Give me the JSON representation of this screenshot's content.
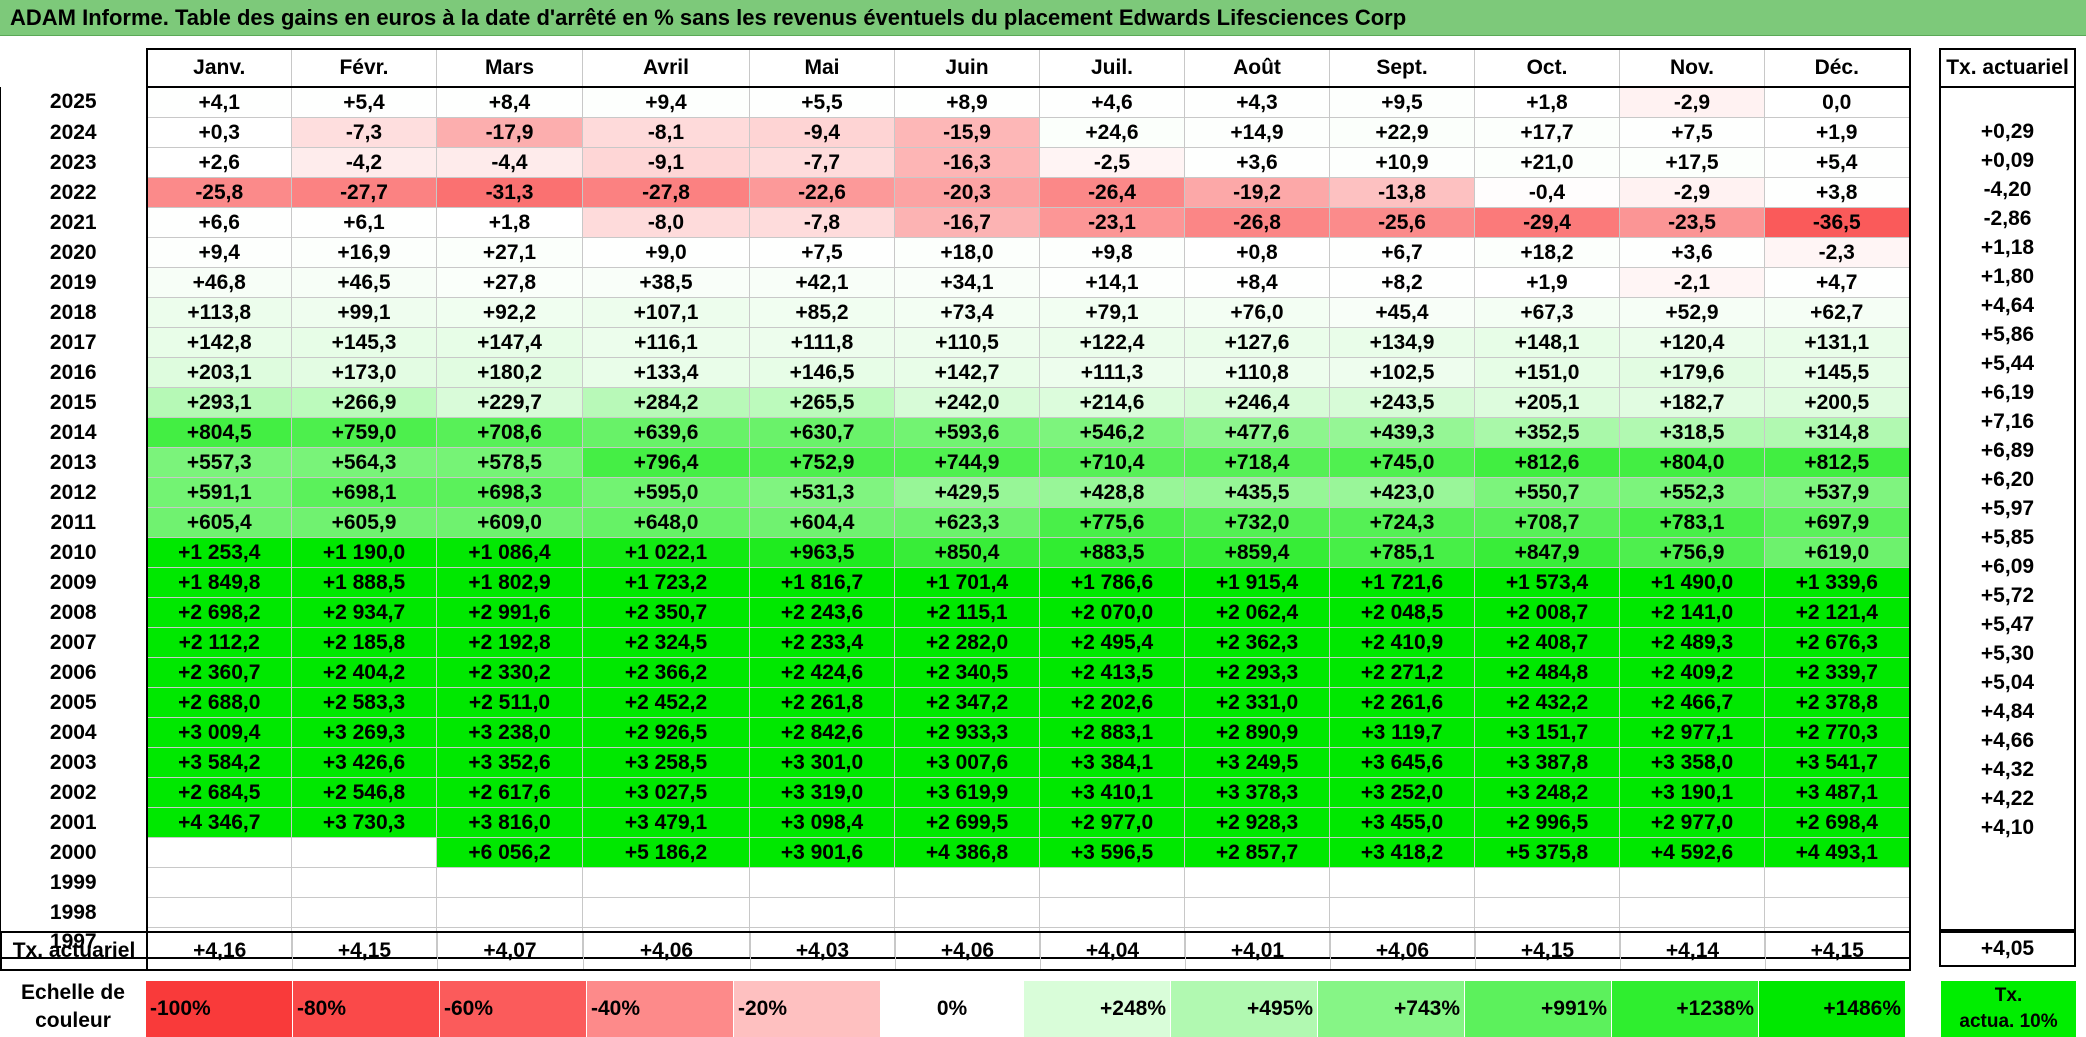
{
  "title": "ADAM Informe. Table des gains en euros à la date d'arrêté en % sans les revenus éventuels du placement Edwards Lifesciences Corp",
  "months": [
    "Janv.",
    "Févr.",
    "Mars",
    "Avril",
    "Mai",
    "Juin",
    "Juil.",
    "Août",
    "Sept.",
    "Oct.",
    "Nov.",
    "Déc."
  ],
  "side_header": "Tx. actuariel",
  "rows": [
    {
      "year": "2025",
      "values": [
        "+4,1",
        "+5,4",
        "+8,4",
        "+9,4",
        "+5,5",
        "+8,9",
        "+4,6",
        "+4,3",
        "+9,5",
        "+1,8",
        "-2,9",
        "0,0"
      ],
      "tx": ""
    },
    {
      "year": "2024",
      "values": [
        "+0,3",
        "-7,3",
        "-17,9",
        "-8,1",
        "-9,4",
        "-15,9",
        "+24,6",
        "+14,9",
        "+22,9",
        "+17,7",
        "+7,5",
        "+1,9"
      ],
      "tx": "+0,29"
    },
    {
      "year": "2023",
      "values": [
        "+2,6",
        "-4,2",
        "-4,4",
        "-9,1",
        "-7,7",
        "-16,3",
        "-2,5",
        "+3,6",
        "+10,9",
        "+21,0",
        "+17,5",
        "+5,4"
      ],
      "tx": "+0,09"
    },
    {
      "year": "2022",
      "values": [
        "-25,8",
        "-27,7",
        "-31,3",
        "-27,8",
        "-22,6",
        "-20,3",
        "-26,4",
        "-19,2",
        "-13,8",
        "-0,4",
        "-2,9",
        "+3,8"
      ],
      "tx": "-4,20"
    },
    {
      "year": "2021",
      "values": [
        "+6,6",
        "+6,1",
        "+1,8",
        "-8,0",
        "-7,8",
        "-16,7",
        "-23,1",
        "-26,8",
        "-25,6",
        "-29,4",
        "-23,5",
        "-36,5"
      ],
      "tx": "-2,86"
    },
    {
      "year": "2020",
      "values": [
        "+9,4",
        "+16,9",
        "+27,1",
        "+9,0",
        "+7,5",
        "+18,0",
        "+9,8",
        "+0,8",
        "+6,7",
        "+18,2",
        "+3,6",
        "-2,3"
      ],
      "tx": "+1,18"
    },
    {
      "year": "2019",
      "values": [
        "+46,8",
        "+46,5",
        "+27,8",
        "+38,5",
        "+42,1",
        "+34,1",
        "+14,1",
        "+8,4",
        "+8,2",
        "+1,9",
        "-2,1",
        "+4,7"
      ],
      "tx": "+1,80"
    },
    {
      "year": "2018",
      "values": [
        "+113,8",
        "+99,1",
        "+92,2",
        "+107,1",
        "+85,2",
        "+73,4",
        "+79,1",
        "+76,0",
        "+45,4",
        "+67,3",
        "+52,9",
        "+62,7"
      ],
      "tx": "+4,64"
    },
    {
      "year": "2017",
      "values": [
        "+142,8",
        "+145,3",
        "+147,4",
        "+116,1",
        "+111,8",
        "+110,5",
        "+122,4",
        "+127,6",
        "+134,9",
        "+148,1",
        "+120,4",
        "+131,1"
      ],
      "tx": "+5,86"
    },
    {
      "year": "2016",
      "values": [
        "+203,1",
        "+173,0",
        "+180,2",
        "+133,4",
        "+146,5",
        "+142,7",
        "+111,3",
        "+110,8",
        "+102,5",
        "+151,0",
        "+179,6",
        "+145,5"
      ],
      "tx": "+5,44"
    },
    {
      "year": "2015",
      "values": [
        "+293,1",
        "+266,9",
        "+229,7",
        "+284,2",
        "+265,5",
        "+242,0",
        "+214,6",
        "+246,4",
        "+243,5",
        "+205,1",
        "+182,7",
        "+200,5"
      ],
      "tx": "+6,19"
    },
    {
      "year": "2014",
      "values": [
        "+804,5",
        "+759,0",
        "+708,6",
        "+639,6",
        "+630,7",
        "+593,6",
        "+546,2",
        "+477,6",
        "+439,3",
        "+352,5",
        "+318,5",
        "+314,8"
      ],
      "tx": "+7,16"
    },
    {
      "year": "2013",
      "values": [
        "+557,3",
        "+564,3",
        "+578,5",
        "+796,4",
        "+752,9",
        "+744,9",
        "+710,4",
        "+718,4",
        "+745,0",
        "+812,6",
        "+804,0",
        "+812,5"
      ],
      "tx": "+6,89"
    },
    {
      "year": "2012",
      "values": [
        "+591,1",
        "+698,1",
        "+698,3",
        "+595,0",
        "+531,3",
        "+429,5",
        "+428,8",
        "+435,5",
        "+423,0",
        "+550,7",
        "+552,3",
        "+537,9"
      ],
      "tx": "+6,20"
    },
    {
      "year": "2011",
      "values": [
        "+605,4",
        "+605,9",
        "+609,0",
        "+648,0",
        "+604,4",
        "+623,3",
        "+775,6",
        "+732,0",
        "+724,3",
        "+708,7",
        "+783,1",
        "+697,9"
      ],
      "tx": "+5,97"
    },
    {
      "year": "2010",
      "values": [
        "+1 253,4",
        "+1 190,0",
        "+1 086,4",
        "+1 022,1",
        "+963,5",
        "+850,4",
        "+883,5",
        "+859,4",
        "+785,1",
        "+847,9",
        "+756,9",
        "+619,0"
      ],
      "tx": "+5,85"
    },
    {
      "year": "2009",
      "values": [
        "+1 849,8",
        "+1 888,5",
        "+1 802,9",
        "+1 723,2",
        "+1 816,7",
        "+1 701,4",
        "+1 786,6",
        "+1 915,4",
        "+1 721,6",
        "+1 573,4",
        "+1 490,0",
        "+1 339,6"
      ],
      "tx": "+6,09"
    },
    {
      "year": "2008",
      "values": [
        "+2 698,2",
        "+2 934,7",
        "+2 991,6",
        "+2 350,7",
        "+2 243,6",
        "+2 115,1",
        "+2 070,0",
        "+2 062,4",
        "+2 048,5",
        "+2 008,7",
        "+2 141,0",
        "+2 121,4"
      ],
      "tx": "+5,72"
    },
    {
      "year": "2007",
      "values": [
        "+2 112,2",
        "+2 185,8",
        "+2 192,8",
        "+2 324,5",
        "+2 233,4",
        "+2 282,0",
        "+2 495,4",
        "+2 362,3",
        "+2 410,9",
        "+2 408,7",
        "+2 489,3",
        "+2 676,3"
      ],
      "tx": "+5,47"
    },
    {
      "year": "2006",
      "values": [
        "+2 360,7",
        "+2 404,2",
        "+2 330,2",
        "+2 366,2",
        "+2 424,6",
        "+2 340,5",
        "+2 413,5",
        "+2 293,3",
        "+2 271,2",
        "+2 484,8",
        "+2 409,2",
        "+2 339,7"
      ],
      "tx": "+5,30"
    },
    {
      "year": "2005",
      "values": [
        "+2 688,0",
        "+2 583,3",
        "+2 511,0",
        "+2 452,2",
        "+2 261,8",
        "+2 347,2",
        "+2 202,6",
        "+2 331,0",
        "+2 261,6",
        "+2 432,2",
        "+2 466,7",
        "+2 378,8"
      ],
      "tx": "+5,04"
    },
    {
      "year": "2004",
      "values": [
        "+3 009,4",
        "+3 269,3",
        "+3 238,0",
        "+2 926,5",
        "+2 842,6",
        "+2 933,3",
        "+2 883,1",
        "+2 890,9",
        "+3 119,7",
        "+3 151,7",
        "+2 977,1",
        "+2 770,3"
      ],
      "tx": "+4,84"
    },
    {
      "year": "2003",
      "values": [
        "+3 584,2",
        "+3 426,6",
        "+3 352,6",
        "+3 258,5",
        "+3 301,0",
        "+3 007,6",
        "+3 384,1",
        "+3 249,5",
        "+3 645,6",
        "+3 387,8",
        "+3 358,0",
        "+3 541,7"
      ],
      "tx": "+4,66"
    },
    {
      "year": "2002",
      "values": [
        "+2 684,5",
        "+2 546,8",
        "+2 617,6",
        "+3 027,5",
        "+3 319,0",
        "+3 619,9",
        "+3 410,1",
        "+3 378,3",
        "+3 252,0",
        "+3 248,2",
        "+3 190,1",
        "+3 487,1"
      ],
      "tx": "+4,32"
    },
    {
      "year": "2001",
      "values": [
        "+4 346,7",
        "+3 730,3",
        "+3 816,0",
        "+3 479,1",
        "+3 098,4",
        "+2 699,5",
        "+2 977,0",
        "+2 928,3",
        "+3 455,0",
        "+2 996,5",
        "+2 977,0",
        "+2 698,4"
      ],
      "tx": "+4,22"
    },
    {
      "year": "2000",
      "values": [
        "",
        "",
        "+6 056,2",
        "+5 186,2",
        "+3 901,6",
        "+4 386,8",
        "+3 596,5",
        "+2 857,7",
        "+3 418,2",
        "+5 375,8",
        "+4 592,6",
        "+4 493,1"
      ],
      "tx": "+4,10"
    },
    {
      "year": "1999",
      "values": [
        "",
        "",
        "",
        "",
        "",
        "",
        "",
        "",
        "",
        "",
        "",
        ""
      ],
      "tx": ""
    },
    {
      "year": "1998",
      "values": [
        "",
        "",
        "",
        "",
        "",
        "",
        "",
        "",
        "",
        "",
        "",
        ""
      ],
      "tx": ""
    },
    {
      "year": "1997",
      "values": [
        "",
        "",
        "",
        "",
        "",
        "",
        "",
        "",
        "",
        "",
        "",
        ""
      ],
      "tx": ""
    }
  ],
  "summary": {
    "label": "Tx. actuariel",
    "values": [
      "+4,16",
      "+4,15",
      "+4,07",
      "+4,06",
      "+4,03",
      "+4,06",
      "+4,04",
      "+4,01",
      "+4,06",
      "+4,15",
      "+4,14",
      "+4,15"
    ],
    "total": "+4,05"
  },
  "scale": {
    "label_line1": "Echelle de",
    "label_line2": "couleur",
    "steps": [
      {
        "label": "-100%",
        "color": "#f93a3a",
        "kind": "neg"
      },
      {
        "label": "-80%",
        "color": "#fa4949",
        "kind": "neg"
      },
      {
        "label": "-60%",
        "color": "#fb5b5b",
        "kind": "neg"
      },
      {
        "label": "-40%",
        "color": "#fd8a8a",
        "kind": "neg"
      },
      {
        "label": "-20%",
        "color": "#fec0c0",
        "kind": "neg"
      },
      {
        "label": "0%",
        "color": "#ffffff",
        "kind": "zero"
      },
      {
        "label": "+248%",
        "color": "#d9fdd9",
        "kind": "pos"
      },
      {
        "label": "+495%",
        "color": "#b1f9b1",
        "kind": "pos"
      },
      {
        "label": "+743%",
        "color": "#86f586",
        "kind": "pos"
      },
      {
        "label": "+991%",
        "color": "#5cf15c",
        "kind": "pos"
      },
      {
        "label": "+1238%",
        "color": "#2fee2f",
        "kind": "pos"
      },
      {
        "label": "+1486%",
        "color": "#00e800",
        "kind": "pos"
      }
    ],
    "tx_line1": "Tx.",
    "tx_line2": "actua. 10%",
    "tx_color": "#00ee00"
  }
}
